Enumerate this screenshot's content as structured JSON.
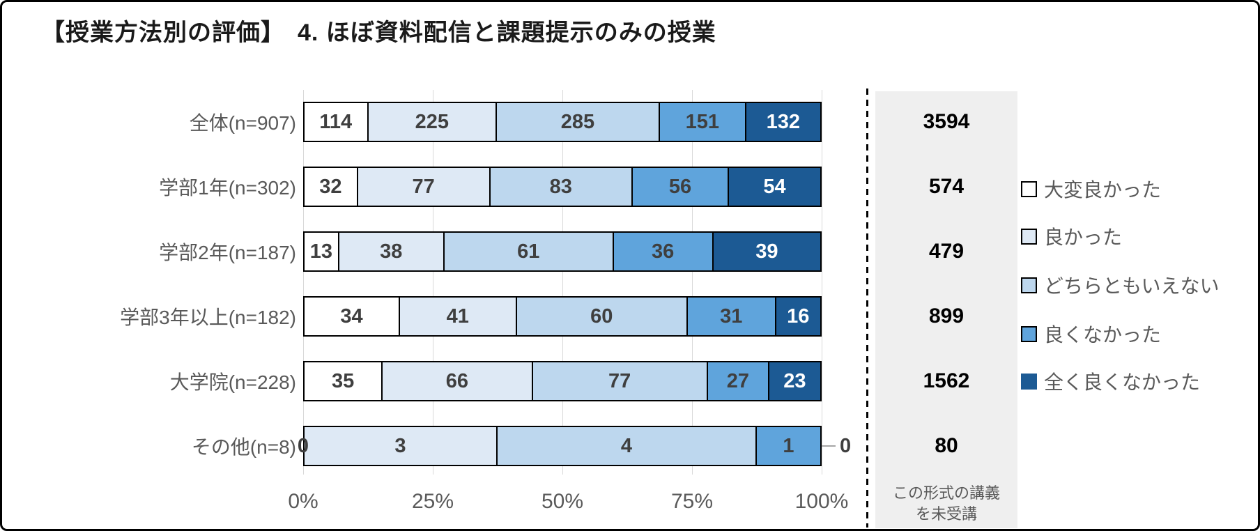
{
  "title": "【授業方法別の評価】　4. ほぼ資料配信と課題提示のみの授業",
  "colors": {
    "bar_border": "#000000",
    "grid": "#d9d9d9",
    "panel_bg": "#efefef",
    "label_text": "#595959",
    "value_text": "#3f3f3f",
    "value_text_on_dark": "#ffffff",
    "leader_line": "#a6a6a6",
    "dashed_separator": "#000000"
  },
  "chart_data": {
    "type": "bar",
    "orientation": "horizontal",
    "stacked": "percent",
    "title": "【授業方法別の評価】　4. ほぼ資料配信と課題提示のみの授業",
    "categories": [
      "全体(n=907)",
      "学部1年(n=302)",
      "学部2年(n=187)",
      "学部3年以上(n=182)",
      "大学院(n=228)",
      "その他(n=8)"
    ],
    "series": [
      {
        "name": "大変良かった",
        "color": "#ffffff",
        "values": [
          114,
          32,
          13,
          34,
          35,
          0
        ]
      },
      {
        "name": "良かった",
        "color": "#dee9f5",
        "values": [
          225,
          77,
          38,
          41,
          66,
          3
        ]
      },
      {
        "name": "どちらともいえない",
        "color": "#bdd7ee",
        "values": [
          285,
          83,
          61,
          60,
          77,
          4
        ]
      },
      {
        "name": "良くなかった",
        "color": "#5fa4dc",
        "values": [
          151,
          56,
          36,
          31,
          27,
          1
        ]
      },
      {
        "name": "全く良くなかった",
        "color": "#1c5a94",
        "values": [
          132,
          54,
          39,
          16,
          23,
          0
        ]
      }
    ],
    "x_ticks": [
      "0%",
      "25%",
      "50%",
      "75%",
      "100%"
    ],
    "xlim": [
      0,
      100
    ],
    "grid": true,
    "legend_position": "right",
    "right_column": {
      "title": "この形式の講義\nを未受講",
      "values": [
        3594,
        574,
        479,
        899,
        1562,
        80
      ]
    }
  }
}
